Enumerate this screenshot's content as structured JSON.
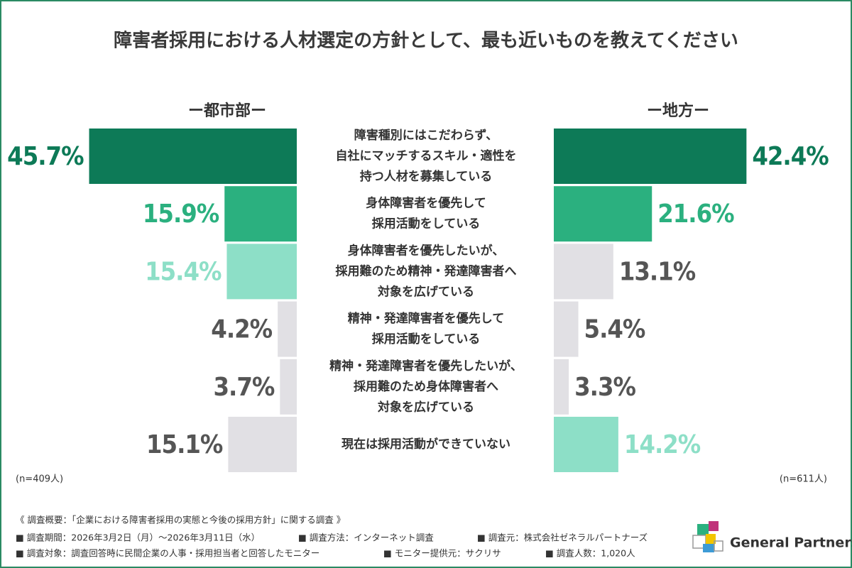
{
  "chart_data": {
    "type": "butterfly-bar",
    "title": "障害者採用における人材選定の方針として、最も近いものを教えてください",
    "categories": [
      [
        "障害種別にはこだわらず、",
        "自社にマッチするスキル・適性を",
        "持つ人材を募集している"
      ],
      [
        "身体障害者を優先して",
        "採用活動をしている"
      ],
      [
        "身体障害者を優先したいが、",
        "採用難のため精神・発達障害者へ",
        "対象を広げている"
      ],
      [
        "精神・発達障害者を優先して",
        "採用活動をしている"
      ],
      [
        "精神・発達障害者を優先したいが、",
        "採用難のため身体障害者へ",
        "対象を広げている"
      ],
      [
        "現在は採用活動ができていない"
      ]
    ],
    "series": [
      {
        "name": "ー都市部ー",
        "side": "left",
        "n_label": "(n=409人)",
        "values": [
          45.7,
          15.9,
          15.4,
          4.2,
          3.7,
          15.1
        ],
        "value_labels": [
          "45.7%",
          "15.9%",
          "15.4%",
          "4.2%",
          "3.7%",
          "15.1%"
        ],
        "colors": [
          "#0d7a57",
          "#2bb07f",
          "#8ddfc7",
          "#e1e0e4",
          "#e1e0e4",
          "#e1e0e4"
        ],
        "label_colors": [
          "#0d7a57",
          "#2bb07f",
          "#8ddfc7",
          "#555555",
          "#555555",
          "#555555"
        ]
      },
      {
        "name": "ー地方ー",
        "side": "right",
        "n_label": "(n=611人)",
        "values": [
          42.4,
          21.6,
          13.1,
          5.4,
          3.3,
          14.2
        ],
        "value_labels": [
          "42.4%",
          "21.6%",
          "13.1%",
          "5.4%",
          "3.3%",
          "14.2%"
        ],
        "colors": [
          "#0d7a57",
          "#2bb07f",
          "#e1e0e4",
          "#e1e0e4",
          "#e1e0e4",
          "#8ddfc7"
        ],
        "label_colors": [
          "#0d7a57",
          "#2bb07f",
          "#555555",
          "#555555",
          "#555555",
          "#8ddfc7"
        ]
      }
    ]
  },
  "notes": {
    "heading": "《 調査概要：「企業における障害者採用の実態と今後の採用方針」に関する調査 》",
    "lines": [
      [
        "■ 調査期間：2026年3月2日（月）〜2026年3月11日（水）",
        "■ 調査方法：インターネット調査",
        "■ 調査元：株式会社ゼネラルパートナーズ"
      ],
      [
        "■ 調査対象：調査回答時に民間企業の人事・採用担当者と回答したモニター",
        "■ モニター提供元：サクリサ",
        "■ 調査人数：1,020人"
      ]
    ]
  },
  "logo": "General Partners"
}
